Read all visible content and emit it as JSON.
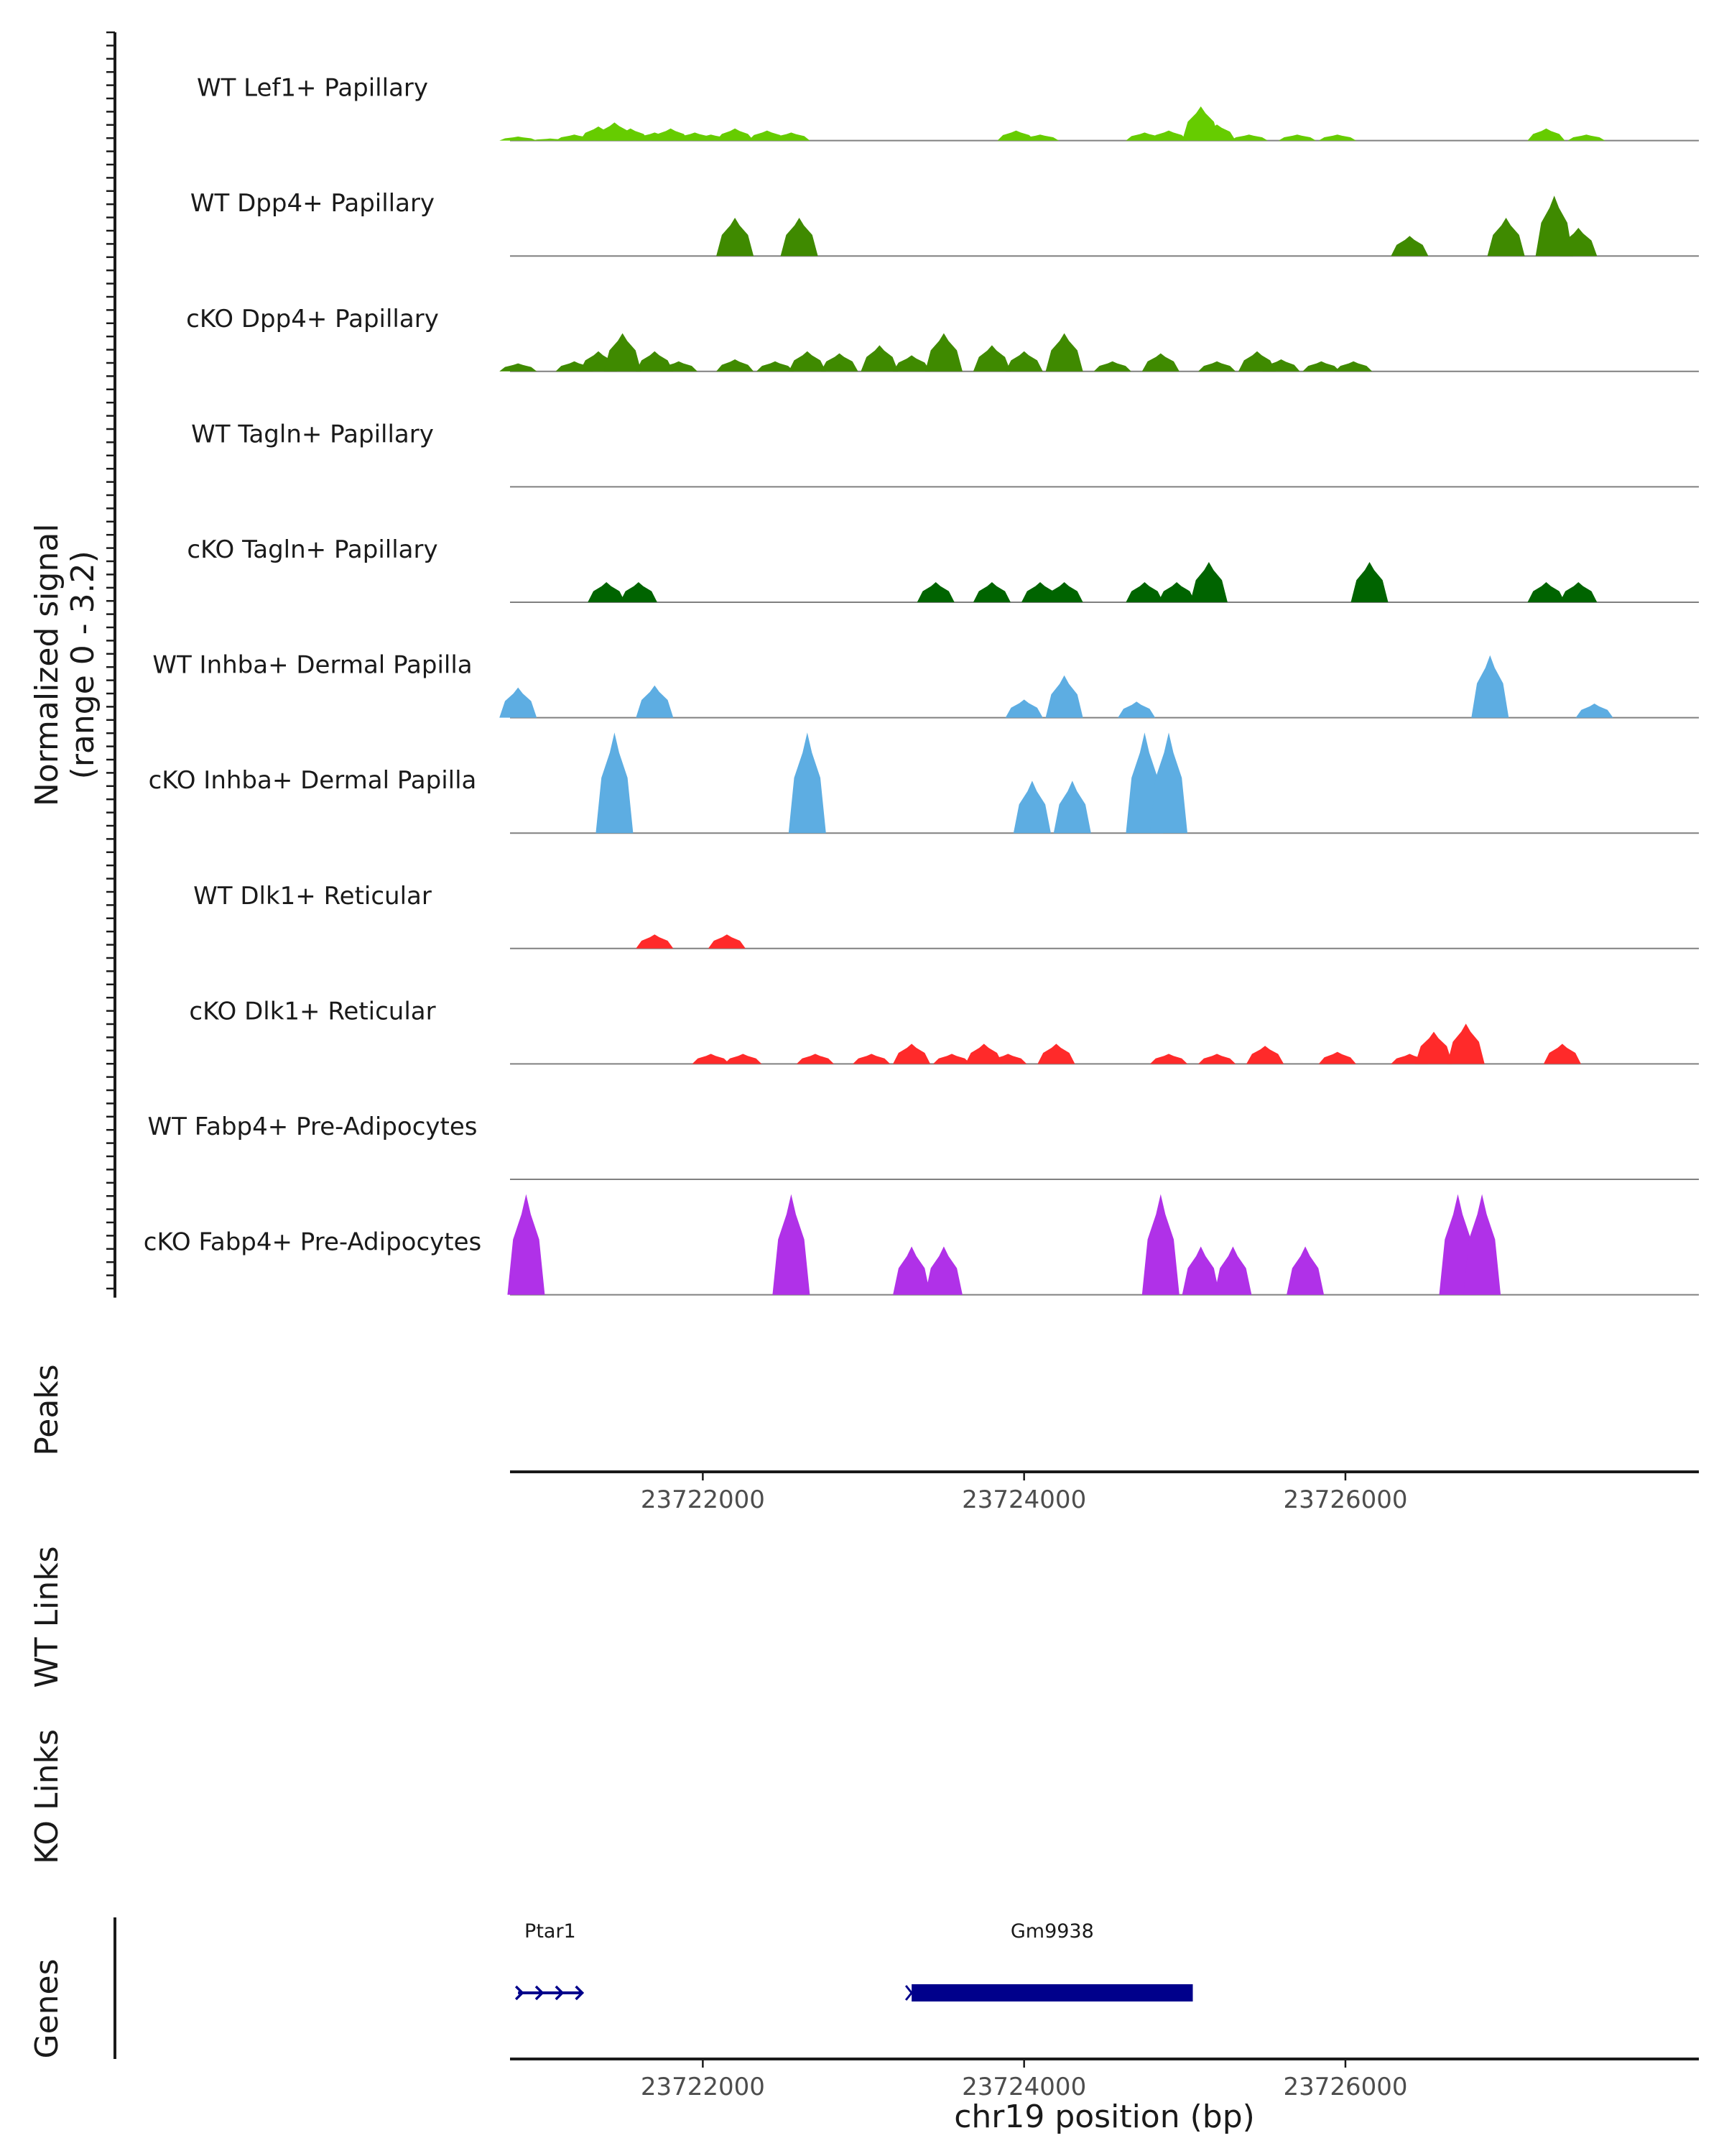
{
  "chart_data": {
    "type": "area",
    "title": "",
    "region": {
      "chromosome": "chr19",
      "start": 23720800,
      "end": 23728200
    },
    "ylabel": "Normalized signal\n(range 0 - 3.2)",
    "yrange": [
      0,
      3.2
    ],
    "xlabel": "chr19 position (bp)",
    "x_ticks": [
      23722000,
      23724000,
      23726000
    ],
    "x_tick_labels": [
      "23722000",
      "23724000",
      "23726000"
    ],
    "track_labels": {
      "peaks": "Peaks",
      "wt_links": "WT Links",
      "ko_links": "KO Links",
      "genes": "Genes"
    },
    "series": [
      {
        "name": "WT Lef1+ Papillary",
        "color": "#66cc00",
        "peaks": [
          [
            23720850,
            0.2
          ],
          [
            23721050,
            0.1
          ],
          [
            23721200,
            0.3
          ],
          [
            23721350,
            0.7
          ],
          [
            23721450,
            0.9
          ],
          [
            23721550,
            0.6
          ],
          [
            23721700,
            0.4
          ],
          [
            23721800,
            0.6
          ],
          [
            23721950,
            0.4
          ],
          [
            23722050,
            0.3
          ],
          [
            23722200,
            0.6
          ],
          [
            23722400,
            0.5
          ],
          [
            23722550,
            0.4
          ],
          [
            23723950,
            0.5
          ],
          [
            23724100,
            0.3
          ],
          [
            23724750,
            0.4
          ],
          [
            23724900,
            0.5
          ],
          [
            23725100,
            1.7
          ],
          [
            23725200,
            0.8
          ],
          [
            23725400,
            0.3
          ],
          [
            23725700,
            0.3
          ],
          [
            23725950,
            0.3
          ],
          [
            23727250,
            0.6
          ],
          [
            23727500,
            0.3
          ]
        ]
      },
      {
        "name": "WT Dpp4+ Papillary",
        "color": "#3f8a00",
        "peaks": [
          [
            23722200,
            1.9
          ],
          [
            23722600,
            1.9
          ],
          [
            23726400,
            1.0
          ],
          [
            23727000,
            1.9
          ],
          [
            23727300,
            3.0
          ],
          [
            23727450,
            1.4
          ]
        ]
      },
      {
        "name": "cKO Dpp4+ Papillary",
        "color": "#3f8a00",
        "peaks": [
          [
            23720850,
            0.4
          ],
          [
            23721200,
            0.5
          ],
          [
            23721350,
            1.0
          ],
          [
            23721500,
            1.9
          ],
          [
            23721700,
            1.0
          ],
          [
            23721850,
            0.5
          ],
          [
            23722200,
            0.6
          ],
          [
            23722450,
            0.5
          ],
          [
            23722650,
            1.0
          ],
          [
            23722850,
            0.9
          ],
          [
            23723100,
            1.3
          ],
          [
            23723300,
            0.8
          ],
          [
            23723500,
            1.9
          ],
          [
            23723800,
            1.3
          ],
          [
            23724000,
            1.0
          ],
          [
            23724250,
            1.9
          ],
          [
            23724550,
            0.5
          ],
          [
            23724850,
            0.9
          ],
          [
            23725200,
            0.5
          ],
          [
            23725450,
            1.0
          ],
          [
            23725600,
            0.6
          ],
          [
            23725850,
            0.5
          ],
          [
            23726050,
            0.5
          ]
        ]
      },
      {
        "name": "WT Tagln+ Papillary",
        "color": "#006400",
        "peaks": []
      },
      {
        "name": "cKO Tagln+ Papillary",
        "color": "#006400",
        "peaks": [
          [
            23721400,
            1.0
          ],
          [
            23721600,
            1.0
          ],
          [
            23723450,
            1.0
          ],
          [
            23723800,
            1.0
          ],
          [
            23724100,
            1.0
          ],
          [
            23724250,
            1.0
          ],
          [
            23724750,
            1.0
          ],
          [
            23724950,
            1.0
          ],
          [
            23725150,
            2.0
          ],
          [
            23726150,
            2.0
          ],
          [
            23727250,
            1.0
          ],
          [
            23727450,
            1.0
          ]
        ]
      },
      {
        "name": "WT Inhba+ Dermal Papilla",
        "color": "#5dade2",
        "peaks": [
          [
            23720850,
            1.5
          ],
          [
            23721700,
            1.6
          ],
          [
            23724000,
            0.9
          ],
          [
            23724250,
            2.1
          ],
          [
            23724700,
            0.8
          ],
          [
            23726900,
            3.1
          ],
          [
            23727550,
            0.7
          ]
        ]
      },
      {
        "name": "cKO Inhba+ Dermal Papilla",
        "color": "#5dade2",
        "peaks": [
          [
            23721450,
            5.0
          ],
          [
            23722650,
            5.0
          ],
          [
            23724050,
            2.6
          ],
          [
            23724300,
            2.6
          ],
          [
            23724750,
            5.0
          ],
          [
            23724900,
            5.0
          ]
        ]
      },
      {
        "name": "WT Dlk1+ Reticular",
        "color": "#ff2a2a",
        "peaks": [
          [
            23721700,
            0.7
          ],
          [
            23722150,
            0.7
          ]
        ]
      },
      {
        "name": "cKO Dlk1+ Reticular",
        "color": "#ff2a2a",
        "peaks": [
          [
            23722050,
            0.5
          ],
          [
            23722250,
            0.5
          ],
          [
            23722700,
            0.5
          ],
          [
            23723050,
            0.5
          ],
          [
            23723300,
            1.0
          ],
          [
            23723550,
            0.5
          ],
          [
            23723750,
            1.0
          ],
          [
            23723900,
            0.5
          ],
          [
            23724200,
            1.0
          ],
          [
            23724900,
            0.5
          ],
          [
            23725200,
            0.5
          ],
          [
            23725500,
            0.9
          ],
          [
            23725950,
            0.6
          ],
          [
            23726400,
            0.5
          ],
          [
            23726550,
            1.6
          ],
          [
            23726750,
            2.0
          ],
          [
            23727350,
            1.0
          ]
        ]
      },
      {
        "name": "WT Fabp4+ Pre-Adipocytes",
        "color": "#b031e8",
        "peaks": []
      },
      {
        "name": "cKO Fabp4+ Pre-Adipocytes",
        "color": "#b031e8",
        "peaks": [
          [
            23720900,
            5.0
          ],
          [
            23722550,
            5.0
          ],
          [
            23723300,
            2.4
          ],
          [
            23723500,
            2.4
          ],
          [
            23724850,
            5.0
          ],
          [
            23725100,
            2.4
          ],
          [
            23725300,
            2.4
          ],
          [
            23725750,
            2.4
          ],
          [
            23726700,
            5.0
          ],
          [
            23726850,
            5.0
          ]
        ]
      }
    ],
    "genes": [
      {
        "name": "Ptar1",
        "start": 23720850,
        "end": 23721250,
        "strand": "+",
        "type": "line"
      },
      {
        "name": "Gm9938",
        "start": 23723300,
        "end": 23725050,
        "strand": "+",
        "type": "box"
      }
    ],
    "colors": {
      "axis": "#1a1a1a",
      "baseline": "#808080",
      "gene": "#00008b"
    }
  }
}
